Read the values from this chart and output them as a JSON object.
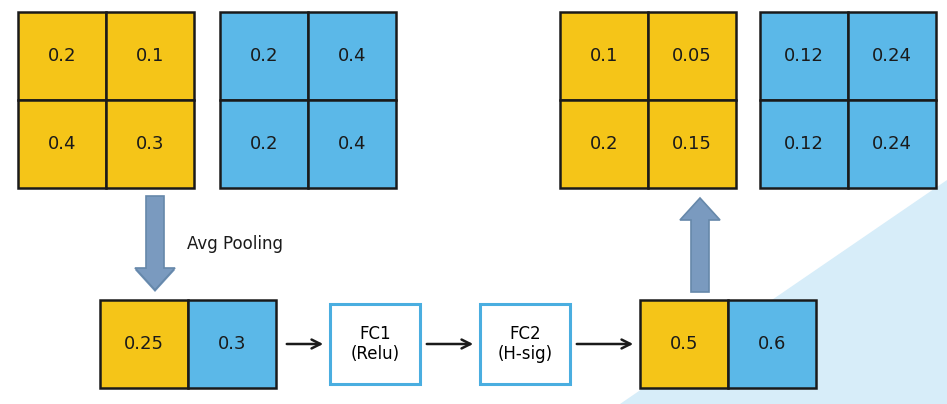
{
  "bg_color": "#ffffff",
  "gold_color": "#F5C518",
  "blue_color": "#5BB8E8",
  "box_border_color": "#1a1a1a",
  "fc_border_color": "#4aaee0",
  "arrow_color": "#7a9abf",
  "top_left_matrix": {
    "gold": [
      [
        "0.2",
        "0.1"
      ],
      [
        "0.4",
        "0.3"
      ]
    ],
    "blue": [
      [
        "0.2",
        "0.4"
      ],
      [
        "0.2",
        "0.4"
      ]
    ]
  },
  "top_right_matrix": {
    "gold": [
      [
        "0.1",
        "0.05"
      ],
      [
        "0.2",
        "0.15"
      ]
    ],
    "blue": [
      [
        "0.12",
        "0.24"
      ],
      [
        "0.12",
        "0.24"
      ]
    ]
  },
  "bottom_left_pair": [
    "0.25",
    "0.3"
  ],
  "bottom_right_pair": [
    "0.5",
    "0.6"
  ],
  "fc1_label": "FC1\n(Relu)",
  "fc2_label": "FC2\n(H-sig)",
  "avg_pooling_label": "Avg Pooling",
  "light_blue_triangle_color": "#d0eaf8"
}
